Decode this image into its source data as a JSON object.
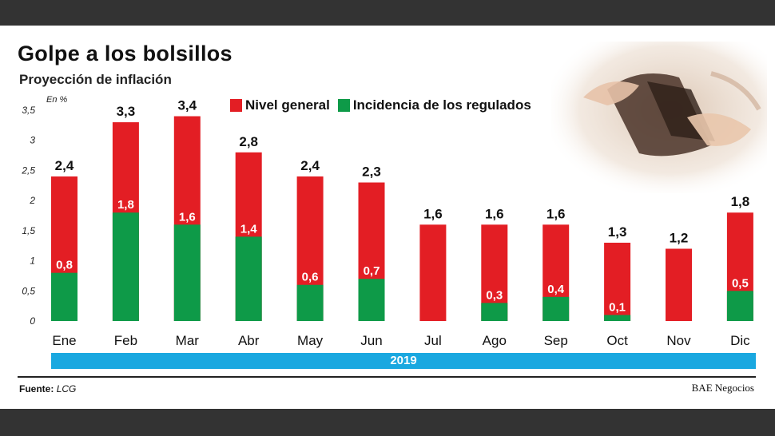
{
  "colors": {
    "general": "#e31e24",
    "regulated": "#0e9a48",
    "year_band": "#1aa8e0"
  },
  "header": {
    "title": "Golpe a los bolsillos",
    "subtitle": "Proyección de inflación",
    "unit": "En %"
  },
  "legend": {
    "general": "Nivel general",
    "regulated": "Incidencia de los regulados"
  },
  "photo": {
    "icon": "wallet-photo-icon"
  },
  "chart_data": {
    "type": "bar",
    "title": "Proyección de inflación",
    "ylabel": "En %",
    "xlabel": "2019",
    "ylim": [
      0,
      3.5
    ],
    "yticks": [
      "0",
      "0,5",
      "1",
      "1,5",
      "2",
      "2,5",
      "3",
      "3,5"
    ],
    "yticks_values": [
      0,
      0.5,
      1,
      1.5,
      2,
      2.5,
      3,
      3.5
    ],
    "categories": [
      "Ene",
      "Feb",
      "Mar",
      "Abr",
      "May",
      "Jun",
      "Jul",
      "Ago",
      "Sep",
      "Oct",
      "Nov",
      "Dic"
    ],
    "series": [
      {
        "name": "Nivel general",
        "values": [
          2.4,
          3.3,
          3.4,
          2.8,
          2.4,
          2.3,
          1.6,
          1.6,
          1.6,
          1.3,
          1.2,
          1.8
        ],
        "labels": [
          "2,4",
          "3,3",
          "3,4",
          "2,8",
          "2,4",
          "2,3",
          "1,6",
          "1,6",
          "1,6",
          "1,3",
          "1,2",
          "1,8"
        ]
      },
      {
        "name": "Incidencia de los regulados",
        "values": [
          0.8,
          1.8,
          1.6,
          1.4,
          0.6,
          0.7,
          null,
          0.3,
          0.4,
          0.1,
          null,
          0.5
        ],
        "labels": [
          "0,8",
          "1,8",
          "1,6",
          "1,4",
          "0,6",
          "0,7",
          null,
          "0,3",
          "0,4",
          "0,1",
          null,
          "0,5"
        ]
      }
    ],
    "legend_position": "top-center",
    "grid": false
  },
  "footer": {
    "year": "2019",
    "source_label": "Fuente:",
    "source_value": "LCG",
    "credit": "BAE Negocios"
  }
}
